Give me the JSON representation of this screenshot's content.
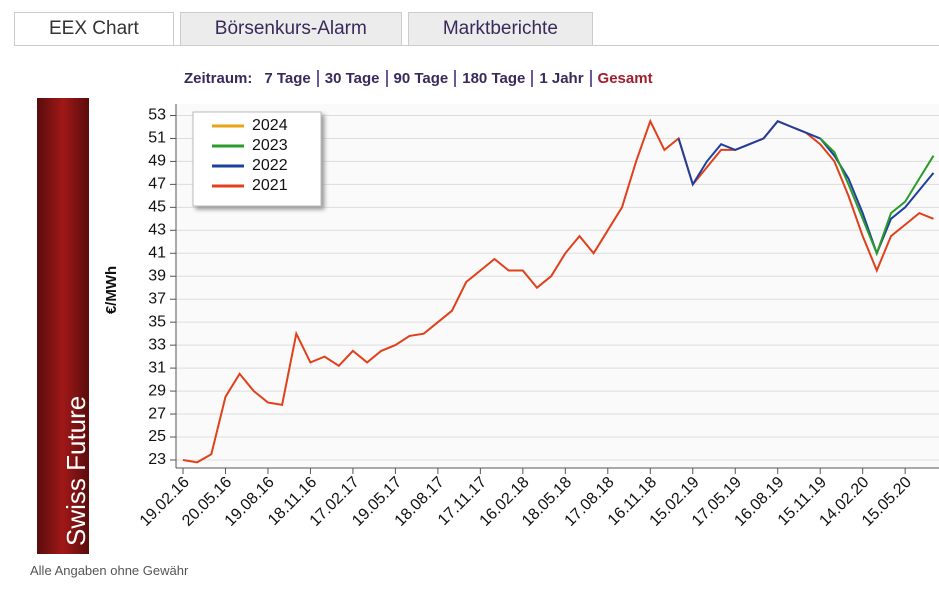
{
  "tabs": [
    "EEX Chart",
    "Börsenkurs-Alarm",
    "Marktberichte"
  ],
  "range": {
    "label": "Zeitraum:",
    "options": [
      "7 Tage",
      "30 Tage",
      "90 Tage",
      "180 Tage",
      "1 Jahr",
      "Gesamt"
    ]
  },
  "side_label": "Swiss Future",
  "footer": "Alle Angaben ohne Gewähr",
  "chart_data": {
    "type": "line",
    "y_label": "€/MWh",
    "categories": [
      "19.02.16",
      null,
      null,
      "20.05.16",
      null,
      null,
      "19.08.16",
      null,
      null,
      "18.11.16",
      null,
      null,
      "17.02.17",
      null,
      null,
      "19.05.17",
      null,
      null,
      "18.08.17",
      null,
      null,
      "17.11.17",
      null,
      null,
      "16.02.18",
      null,
      null,
      "18.05.18",
      null,
      null,
      "17.08.18",
      null,
      null,
      "16.11.18",
      null,
      null,
      "15.02.19",
      null,
      null,
      "17.05.19",
      null,
      null,
      "16.08.19",
      null,
      null,
      "15.11.19",
      null,
      null,
      "14.02.20",
      null,
      null,
      "15.05.20",
      null,
      null
    ],
    "series": [
      {
        "name": "2024",
        "color": "#e8a317",
        "values": [
          null,
          null,
          null,
          null,
          null,
          null,
          null,
          null,
          null,
          null,
          null,
          null,
          null,
          null,
          null,
          null,
          null,
          null,
          null,
          null,
          null,
          null,
          null,
          null,
          null,
          null,
          null,
          null,
          null,
          null,
          null,
          null,
          null,
          null,
          null,
          null,
          null,
          null,
          null,
          null,
          null,
          null,
          null,
          null,
          null,
          null,
          null,
          null,
          null,
          null,
          null,
          null,
          null,
          null
        ]
      },
      {
        "name": "2023",
        "color": "#2a9a2a",
        "values": [
          null,
          null,
          null,
          null,
          null,
          null,
          null,
          null,
          null,
          null,
          null,
          null,
          null,
          null,
          null,
          null,
          null,
          null,
          null,
          null,
          null,
          null,
          null,
          null,
          null,
          null,
          null,
          null,
          null,
          null,
          null,
          null,
          null,
          null,
          null,
          null,
          null,
          null,
          null,
          null,
          null,
          null,
          null,
          null,
          null,
          51,
          49.8,
          47,
          44,
          41,
          44.5,
          45.5,
          47.5,
          49.5
        ]
      },
      {
        "name": "2022",
        "color": "#1f3f9f",
        "values": [
          null,
          null,
          null,
          null,
          null,
          null,
          null,
          null,
          null,
          null,
          null,
          null,
          null,
          null,
          null,
          null,
          null,
          null,
          null,
          null,
          null,
          null,
          null,
          null,
          null,
          null,
          null,
          null,
          null,
          null,
          null,
          null,
          null,
          null,
          null,
          51,
          47,
          49,
          50.5,
          50,
          50.5,
          51,
          52.5,
          52,
          51.5,
          51,
          49.5,
          47.5,
          44.5,
          41,
          44,
          45,
          46.5,
          48
        ]
      },
      {
        "name": "2021",
        "color": "#e0401a",
        "values": [
          23,
          22.8,
          23.5,
          28.5,
          30.5,
          29,
          28,
          27.8,
          34,
          31.5,
          32,
          31.2,
          32.5,
          31.5,
          32.5,
          33,
          33.8,
          34,
          35,
          36,
          38.5,
          39.5,
          40.5,
          39.5,
          39.5,
          38,
          39,
          41,
          42.5,
          41,
          43,
          45,
          49,
          52.5,
          50,
          51,
          47,
          48.5,
          50,
          50,
          50.5,
          51,
          52.5,
          52,
          51.5,
          50.5,
          49,
          46,
          42.5,
          39.5,
          42.5,
          43.5,
          44.5,
          44
        ]
      }
    ],
    "ylim": [
      22.3,
      54
    ],
    "yticks": [
      23,
      25,
      27,
      29,
      31,
      33,
      35,
      37,
      39,
      41,
      43,
      45,
      47,
      49,
      51,
      53
    ],
    "grid": true
  }
}
